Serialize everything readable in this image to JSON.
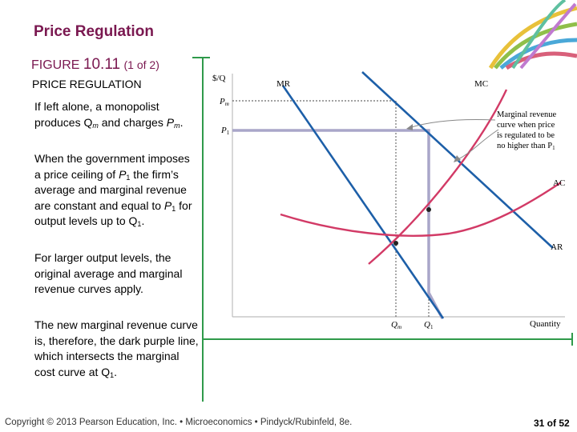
{
  "slide": {
    "title": "Price Regulation",
    "figure_word": "FIGURE",
    "figure_number": "10.11",
    "figure_part": "(1 of 2)",
    "figure_heading": "PRICE REGULATION",
    "paragraphs": {
      "p1": {
        "a": "If left alone, a monopolist produces Q",
        "a_sub": "m",
        "b": " and charges ",
        "b_var": "P",
        "b_sub": "m",
        "c": "."
      },
      "p2": {
        "a": "When the government imposes a price ceiling of ",
        "a_var": "P",
        "a_sub": "1",
        "b": " the firm’s average and marginal revenue are constant and equal to ",
        "b_var": "P",
        "b_sub": "1",
        "c": " for output levels up to Q",
        "c_sub": "1",
        "d": "."
      },
      "p3": {
        "text": "For larger output levels, the original average and marginal revenue curves apply."
      },
      "p4": {
        "a": "The new marginal revenue curve is, therefore, the dark purple line, which intersects the marginal cost curve at Q",
        "a_sub": "1",
        "b": "."
      }
    },
    "footer": "Copyright © 2013  Pearson Education, Inc. • Microeconomics • Pindyck/Rubinfeld, 8e.",
    "page_indicator": "31 of 52"
  },
  "chart_labels": {
    "y_axis": "$/Q",
    "x_axis": "Quantity",
    "pm": "P",
    "pm_sub": "m",
    "p1": "P",
    "p1_sub": "1",
    "qm": "Q",
    "qm_sub": "m",
    "q1": "Q",
    "q1_sub": "1",
    "mr": "MR",
    "mc": "MC",
    "ac": "AC",
    "ar": "AR",
    "annotation": [
      "Marginal revenue",
      "curve when price",
      "is regulated to be",
      "no higher than P"
    ],
    "annotation_sub": "1"
  },
  "colors": {
    "title": "#7a1850",
    "mr_ar_line": "#1d5fa8",
    "mc_ac_curve": "#d23a66",
    "regulated_mr": "#a9a6c9",
    "frame_green": "#2f9a4a"
  }
}
